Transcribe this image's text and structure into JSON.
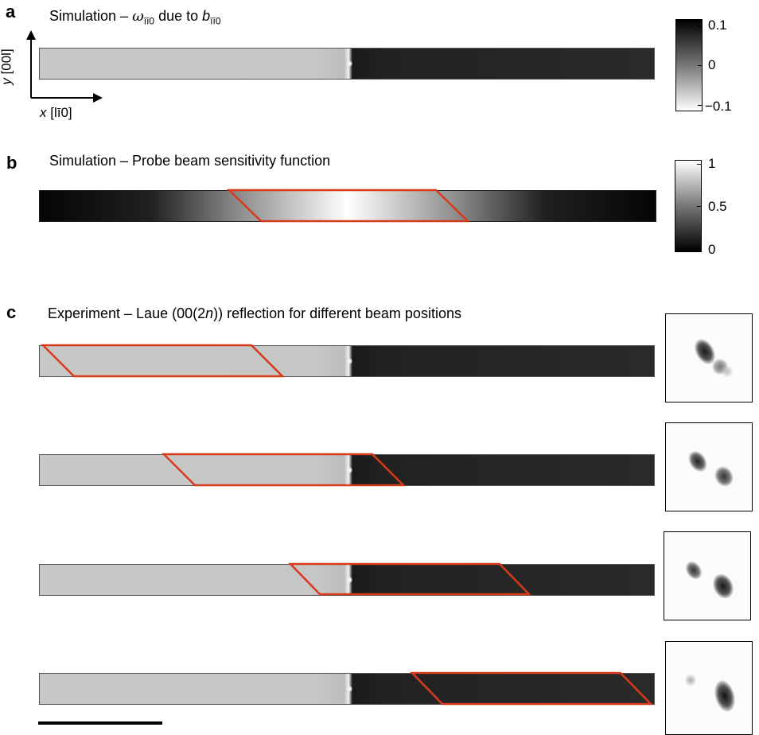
{
  "panel_a": {
    "letter": "a",
    "title_prefix": "Simulation – ",
    "title_omega": "ω",
    "title_omega_sub": "īī0",
    "title_mid": " due to ",
    "title_b": "b",
    "title_b_sub": "īī0",
    "axis_y_italic": "y",
    "axis_y_rest": " [00l]",
    "axis_x_italic": "x",
    "axis_x_rest": " [lī0]",
    "colorbar_ticks": [
      "0.1",
      "0",
      "−0.1"
    ]
  },
  "panel_b": {
    "letter": "b",
    "title": "Simulation – Probe beam sensitivity function",
    "colorbar_ticks": [
      "1",
      "0.5",
      "0"
    ]
  },
  "panel_c": {
    "letter": "c",
    "title_pre": "Experiment – Laue (00(2",
    "title_italic": "n",
    "title_post": ")) reflection for different beam positions",
    "beam_positions": [
      0.09,
      0.305,
      0.51,
      0.71
    ]
  },
  "colors": {
    "beam_outline": "#d63a1a",
    "dark_domain": "#222222",
    "light_domain": "#c8c8c8"
  }
}
